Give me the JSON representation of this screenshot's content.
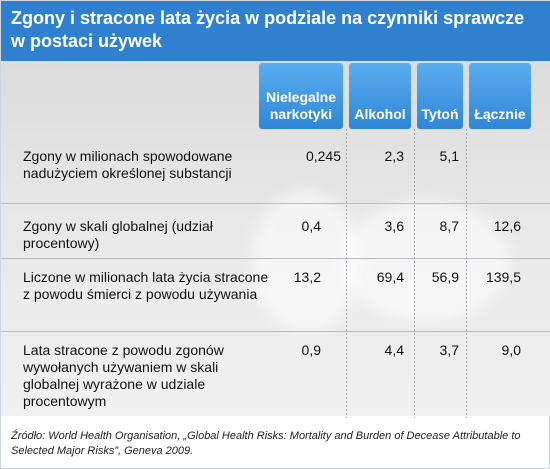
{
  "title": "Zgony i stracone lata życia w podziale na czynniki sprawcze w postaci używek",
  "colors": {
    "header": "#2f80cf",
    "column_header": "#3b93de"
  },
  "chart_data": {
    "type": "table",
    "columns": [
      "Nielegalne narkotyki",
      "Alkohol",
      "Tytoń",
      "Łącznie"
    ],
    "rows": [
      {
        "label": "Zgony w milionach spowodowane nadużyciem określonej substancji",
        "values": [
          "0,245",
          "2,3",
          "5,1",
          ""
        ]
      },
      {
        "label": "Zgony w skali globalnej (udział procentowy)",
        "values": [
          "0,4",
          "3,6",
          "8,7",
          "12,6"
        ]
      },
      {
        "label": "Liczone w milionach lata życia stracone z powodu śmierci z powodu używania",
        "values": [
          "13,2",
          "69,4",
          "56,9",
          "139,5"
        ]
      },
      {
        "label": "Lata stracone z powodu zgonów wywołanych używaniem w skali globalnej wyrażone w udziale procentowym",
        "values": [
          "0,9",
          "4,4",
          "3,7",
          "9,0"
        ]
      }
    ]
  },
  "source": "Źródło: World Health Organisation, „Global Health Risks: Mortality and Burden of Decease Attributable to Selected Major Risks”, Geneva 2009."
}
